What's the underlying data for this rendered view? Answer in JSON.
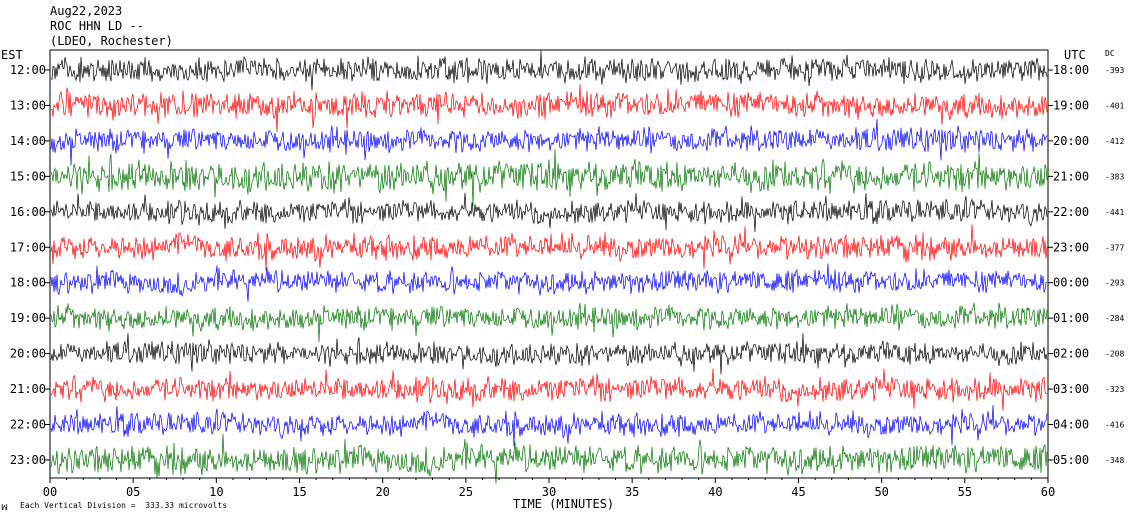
{
  "header": {
    "date": "Aug22,2023",
    "station": "ROC HHN LD --",
    "network": "(LDEO, Rochester)",
    "left_zone": "EST",
    "right_zone": "UTC",
    "dc_label": "DC"
  },
  "footer": {
    "logo": "ꟽ",
    "scale_note": "Each Vertical Division =  333.33 microvolts"
  },
  "chart_data": {
    "type": "line",
    "title": "",
    "xlabel": "TIME (MINUTES)",
    "xlim": [
      0,
      60
    ],
    "x_ticks": [
      "00",
      "05",
      "10",
      "15",
      "20",
      "25",
      "30",
      "35",
      "40",
      "45",
      "50",
      "55",
      "60"
    ],
    "colors": [
      "#000000",
      "#ff0000",
      "#0000ff",
      "#007700"
    ],
    "rows": [
      {
        "est": "12:00",
        "utc": "18:00",
        "dc": "-393",
        "color": "#000000",
        "amplitude": 14
      },
      {
        "est": "13:00",
        "utc": "19:00",
        "dc": "-401",
        "color": "#ff0000",
        "amplitude": 15
      },
      {
        "est": "14:00",
        "utc": "20:00",
        "dc": "-412",
        "color": "#0000ff",
        "amplitude": 14
      },
      {
        "est": "15:00",
        "utc": "21:00",
        "dc": "-383",
        "color": "#007700",
        "amplitude": 18
      },
      {
        "est": "16:00",
        "utc": "22:00",
        "dc": "-441",
        "color": "#000000",
        "amplitude": 13
      },
      {
        "est": "17:00",
        "utc": "23:00",
        "dc": "-377",
        "color": "#ff0000",
        "amplitude": 14
      },
      {
        "est": "18:00",
        "utc": "00:00",
        "dc": "-293",
        "color": "#0000ff",
        "amplitude": 13
      },
      {
        "est": "19:00",
        "utc": "01:00",
        "dc": "-284",
        "color": "#007700",
        "amplitude": 14
      },
      {
        "est": "20:00",
        "utc": "02:00",
        "dc": "-208",
        "color": "#000000",
        "amplitude": 13
      },
      {
        "est": "21:00",
        "utc": "03:00",
        "dc": "-323",
        "color": "#ff0000",
        "amplitude": 14
      },
      {
        "est": "22:00",
        "utc": "04:00",
        "dc": "-416",
        "color": "#0000ff",
        "amplitude": 13
      },
      {
        "est": "23:00",
        "utc": "05:00",
        "dc": "-348",
        "color": "#007700",
        "amplitude": 16
      }
    ]
  }
}
